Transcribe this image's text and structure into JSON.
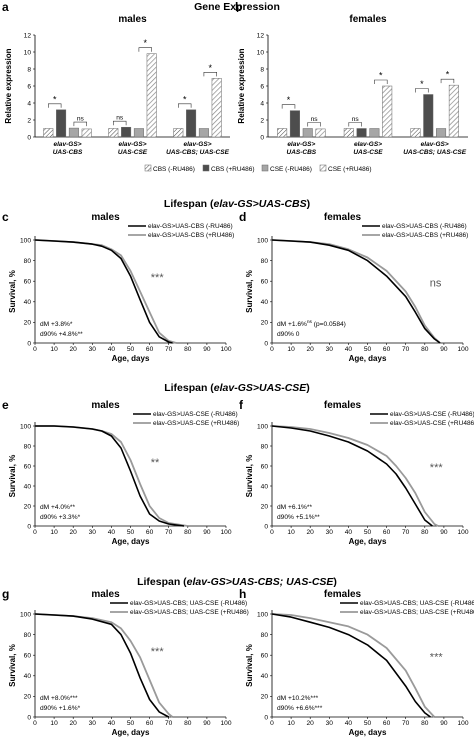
{
  "colors": {
    "cbs_minus": "#ffffff",
    "cbs_plus": "#4d4d4d",
    "cse_minus": "#a6a6a6",
    "cse_plus": "#ffffff",
    "line_minus": "#000000",
    "line_plus": "#9a9a9a"
  },
  "gene_expression": {
    "title": "Gene Expression",
    "ylabel": "Relative expression",
    "yticks": [
      "0",
      "2",
      "4",
      "6",
      "8",
      "10",
      "12"
    ],
    "legend": [
      "CBS (-RU486)",
      "CBS (+RU486)",
      "CSE (-RU486)",
      "CSE (+RU486)"
    ],
    "sig_star": "*",
    "sig_ns": "ns",
    "panels": [
      {
        "label": "a",
        "title": "males",
        "groups": [
          {
            "line1": "elav-GS>",
            "line2": "UAS-CBS",
            "values": [
              1.0,
              3.2,
              1.05,
              0.95
            ],
            "sig": [
              "*",
              "ns"
            ]
          },
          {
            "line1": "elav-GS>",
            "line2": "UAS-CSE",
            "values": [
              1.0,
              1.15,
              1.0,
              9.8
            ],
            "sig": [
              "ns",
              "*"
            ]
          },
          {
            "line1": "elav-GS>",
            "line2": "UAS-CBS; UAS-CSE",
            "values": [
              1.0,
              3.2,
              1.0,
              6.9
            ],
            "sig": [
              "*",
              "*"
            ]
          }
        ]
      },
      {
        "label": "b",
        "title": "females",
        "groups": [
          {
            "line1": "elav-GS>",
            "line2": "UAS-CBS",
            "values": [
              1.0,
              3.1,
              1.0,
              0.95
            ],
            "sig": [
              "*",
              "ns"
            ]
          },
          {
            "line1": "elav-GS>",
            "line2": "UAS-CSE",
            "values": [
              1.0,
              1.0,
              1.0,
              6.0
            ],
            "sig": [
              "ns",
              "*"
            ]
          },
          {
            "line1": "elav-GS>",
            "line2": "UAS-CBS; UAS-CSE",
            "values": [
              1.0,
              5.0,
              1.0,
              6.1
            ],
            "sig": [
              "*",
              "*"
            ]
          }
        ]
      }
    ]
  },
  "lifespan": {
    "ylabel": "Survival, %",
    "xlabel": "Age, days",
    "yticks": [
      "0",
      "20",
      "40",
      "60",
      "80",
      "100"
    ],
    "xticks": [
      "0",
      "10",
      "20",
      "30",
      "40",
      "50",
      "60",
      "70",
      "80",
      "90",
      "100"
    ],
    "sections": [
      {
        "title_prefix": "Lifespan (",
        "title_geno": "elav-GS>UAS-CBS",
        "title_suffix": ")"
      },
      {
        "title_prefix": "Lifespan (",
        "title_geno": "elav-GS>UAS-CSE",
        "title_suffix": ")"
      },
      {
        "title_prefix": "Lifespan (",
        "title_geno": "elav-GS>UAS-CBS; UAS-CSE",
        "title_suffix": ")"
      }
    ],
    "panels": [
      {
        "label": "c",
        "title": "males",
        "legend": [
          "elav-GS>UAS-CBS (-RU486)",
          "elav-GS>UAS-CBS (+RU486)"
        ],
        "sig": "***",
        "note1": "dM +3.8%*",
        "note2": "d90% +4.8%**",
        "minus": [
          [
            0,
            100
          ],
          [
            10,
            99
          ],
          [
            20,
            98
          ],
          [
            30,
            96
          ],
          [
            35,
            94
          ],
          [
            40,
            90
          ],
          [
            45,
            82
          ],
          [
            50,
            65
          ],
          [
            55,
            42
          ],
          [
            60,
            20
          ],
          [
            65,
            6
          ],
          [
            70,
            1
          ],
          [
            72,
            0
          ]
        ],
        "plus": [
          [
            0,
            100
          ],
          [
            10,
            99
          ],
          [
            20,
            98
          ],
          [
            30,
            96
          ],
          [
            35,
            95
          ],
          [
            40,
            91
          ],
          [
            45,
            85
          ],
          [
            50,
            70
          ],
          [
            55,
            50
          ],
          [
            60,
            30
          ],
          [
            65,
            10
          ],
          [
            70,
            2
          ],
          [
            74,
            0
          ]
        ]
      },
      {
        "label": "d",
        "title": "females",
        "legend": [
          "elav-GS>UAS-CBS (-RU486)",
          "elav-GS>UAS-CBS (+RU486)"
        ],
        "sig": "ns",
        "note1": "dM +1.6%",
        "note1_sup": "ns",
        "note1_suffix": " (p=0.0584)",
        "note2": "d90% 0",
        "minus": [
          [
            0,
            100
          ],
          [
            10,
            99
          ],
          [
            20,
            98
          ],
          [
            30,
            95
          ],
          [
            40,
            90
          ],
          [
            50,
            80
          ],
          [
            60,
            65
          ],
          [
            70,
            45
          ],
          [
            75,
            30
          ],
          [
            80,
            14
          ],
          [
            85,
            4
          ],
          [
            88,
            0
          ]
        ],
        "plus": [
          [
            0,
            100
          ],
          [
            10,
            99
          ],
          [
            20,
            98
          ],
          [
            30,
            96
          ],
          [
            40,
            91
          ],
          [
            50,
            83
          ],
          [
            60,
            70
          ],
          [
            70,
            50
          ],
          [
            75,
            35
          ],
          [
            80,
            17
          ],
          [
            85,
            5
          ],
          [
            88,
            0
          ]
        ]
      },
      {
        "label": "e",
        "title": "males",
        "legend": [
          "elav-GS>UAS-CSE (-RU486)",
          "elav-GS>UAS-CSE (+RU486)"
        ],
        "sig": "**",
        "note1": "dM +4.0%**",
        "note2": "d90% +3.3%*",
        "minus": [
          [
            0,
            100
          ],
          [
            10,
            100
          ],
          [
            20,
            99
          ],
          [
            30,
            97
          ],
          [
            35,
            95
          ],
          [
            40,
            90
          ],
          [
            45,
            78
          ],
          [
            50,
            55
          ],
          [
            55,
            30
          ],
          [
            60,
            12
          ],
          [
            65,
            5
          ],
          [
            70,
            2
          ],
          [
            78,
            0
          ]
        ],
        "plus": [
          [
            0,
            100
          ],
          [
            10,
            100
          ],
          [
            20,
            99
          ],
          [
            30,
            97
          ],
          [
            35,
            95
          ],
          [
            40,
            92
          ],
          [
            45,
            84
          ],
          [
            50,
            66
          ],
          [
            55,
            42
          ],
          [
            60,
            20
          ],
          [
            65,
            8
          ],
          [
            70,
            3
          ],
          [
            80,
            0
          ]
        ]
      },
      {
        "label": "f",
        "title": "females",
        "legend": [
          "elav-GS>UAS-CSE (-RU486)",
          "elav-GS>UAS-CSE (+RU486)"
        ],
        "sig": "***",
        "note1": "dM +6.1%**",
        "note2": "d90% +5.1%**",
        "minus": [
          [
            0,
            100
          ],
          [
            10,
            98
          ],
          [
            20,
            95
          ],
          [
            30,
            90
          ],
          [
            40,
            84
          ],
          [
            50,
            75
          ],
          [
            60,
            62
          ],
          [
            65,
            52
          ],
          [
            70,
            38
          ],
          [
            75,
            22
          ],
          [
            80,
            6
          ],
          [
            84,
            0
          ]
        ],
        "plus": [
          [
            0,
            100
          ],
          [
            10,
            99
          ],
          [
            20,
            97
          ],
          [
            30,
            93
          ],
          [
            40,
            88
          ],
          [
            50,
            81
          ],
          [
            60,
            70
          ],
          [
            65,
            60
          ],
          [
            70,
            48
          ],
          [
            75,
            33
          ],
          [
            80,
            14
          ],
          [
            85,
            2
          ],
          [
            87,
            0
          ]
        ]
      },
      {
        "label": "g",
        "title": "males",
        "legend": [
          "elav-GS>UAS-CBS; UAS-CSE (-RU486)",
          "elav-GS>UAS-CBS; UAS-CSE (+RU486)"
        ],
        "sig": "***",
        "note1": "dM +8.0%***",
        "note2": "d90% +1.6%*",
        "minus": [
          [
            0,
            100
          ],
          [
            10,
            99
          ],
          [
            20,
            98
          ],
          [
            30,
            95
          ],
          [
            40,
            90
          ],
          [
            45,
            80
          ],
          [
            50,
            62
          ],
          [
            55,
            38
          ],
          [
            60,
            17
          ],
          [
            65,
            5
          ],
          [
            70,
            0
          ]
        ],
        "plus": [
          [
            0,
            100
          ],
          [
            10,
            99
          ],
          [
            20,
            98
          ],
          [
            30,
            96
          ],
          [
            40,
            92
          ],
          [
            45,
            86
          ],
          [
            50,
            74
          ],
          [
            55,
            58
          ],
          [
            60,
            36
          ],
          [
            65,
            14
          ],
          [
            70,
            3
          ],
          [
            72,
            0
          ]
        ]
      },
      {
        "label": "h",
        "title": "females",
        "legend": [
          "elav-GS>UAS-CBS; UAS-CSE (-RU486)",
          "elav-GS>UAS-CBS; UAS-CSE (+RU486)"
        ],
        "sig": "***",
        "note1": "dM +10.2%***",
        "note2": "d90% +6.6%***",
        "minus": [
          [
            0,
            100
          ],
          [
            10,
            97
          ],
          [
            20,
            92
          ],
          [
            30,
            87
          ],
          [
            40,
            80
          ],
          [
            50,
            70
          ],
          [
            60,
            55
          ],
          [
            70,
            30
          ],
          [
            75,
            15
          ],
          [
            80,
            4
          ],
          [
            83,
            0
          ]
        ],
        "plus": [
          [
            0,
            100
          ],
          [
            10,
            99
          ],
          [
            20,
            96
          ],
          [
            30,
            92
          ],
          [
            40,
            88
          ],
          [
            50,
            80
          ],
          [
            60,
            67
          ],
          [
            70,
            45
          ],
          [
            75,
            28
          ],
          [
            80,
            10
          ],
          [
            85,
            0
          ]
        ]
      }
    ]
  }
}
